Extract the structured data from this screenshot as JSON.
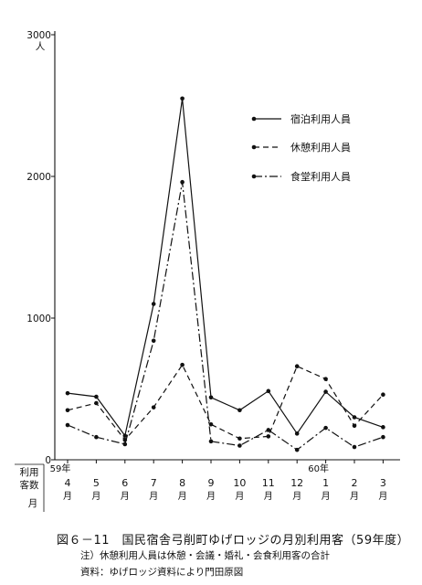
{
  "chart_data": {
    "type": "line",
    "y_unit": "人",
    "ylim": [
      0,
      3000
    ],
    "y_ticks": [
      "0",
      "1000",
      "2000",
      "3000"
    ],
    "categories": [
      "4",
      "5",
      "6",
      "7",
      "8",
      "9",
      "10",
      "11",
      "12",
      "1",
      "2",
      "3"
    ],
    "month_suffix": "月",
    "year_labels": [
      {
        "text": "59年",
        "category_index": 0
      },
      {
        "text": "60年",
        "category_index": 9
      }
    ],
    "row_label_users": "利用客数",
    "row_label_month": "月",
    "series": [
      {
        "name": "宿泊利用人員",
        "dash": "solid",
        "values": [
          470,
          445,
          170,
          1100,
          2550,
          440,
          350,
          485,
          185,
          480,
          300,
          230
        ]
      },
      {
        "name": "休憩利用人員",
        "dash": "dashed",
        "values": [
          350,
          400,
          140,
          370,
          670,
          250,
          150,
          165,
          660,
          570,
          240,
          460
        ]
      },
      {
        "name": "食堂利用人員",
        "dash": "dashdot",
        "values": [
          245,
          160,
          110,
          840,
          1960,
          130,
          100,
          210,
          70,
          225,
          90,
          160
        ]
      }
    ]
  },
  "caption": "図６－11　国民宿舎弓削町ゆげロッジの月別利用客（59年度）",
  "notes": [
    "注）休憩利用人員は休憩・会議・婚礼・会食利用客の合計",
    "資料：ゆげロッジ資料により門田原図"
  ]
}
